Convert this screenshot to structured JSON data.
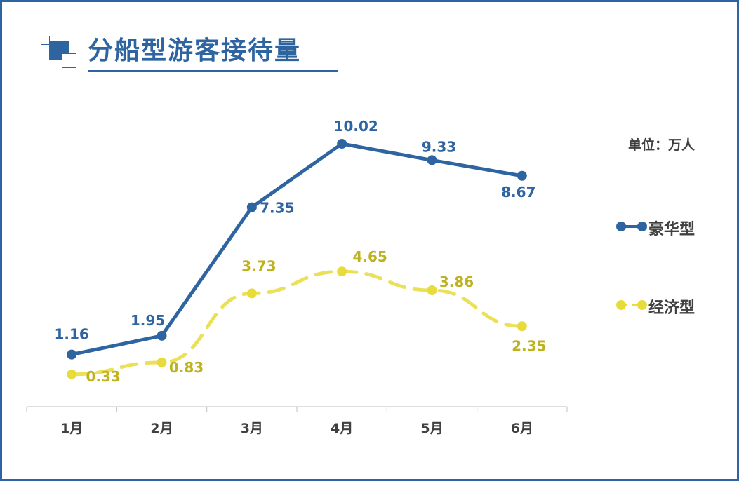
{
  "title": "分船型游客接待量",
  "unit_label": "单位：万人",
  "colors": {
    "frame": "#2E64A0",
    "luxury": "#2E64A0",
    "economy": "#E8DC3C",
    "economy_label": "#BEB21E",
    "text": "#404040",
    "axis": "#BFBFBF"
  },
  "chart_data": {
    "type": "line",
    "title": "分船型游客接待量",
    "categories": [
      "1月",
      "2月",
      "3月",
      "4月",
      "5月",
      "6月"
    ],
    "series": [
      {
        "name": "豪华型",
        "values": [
          1.16,
          1.95,
          7.35,
          10.02,
          9.33,
          8.67
        ],
        "color": "#2E64A0",
        "line_style": "solid",
        "marker": "circle"
      },
      {
        "name": "经济型",
        "values": [
          0.33,
          0.83,
          3.73,
          4.65,
          3.86,
          2.35
        ],
        "color": "#E8DC3C",
        "line_style": "dashed",
        "marker": "circle"
      }
    ],
    "ylim": [
      0,
      11
    ],
    "grid": false,
    "legend": "right"
  }
}
